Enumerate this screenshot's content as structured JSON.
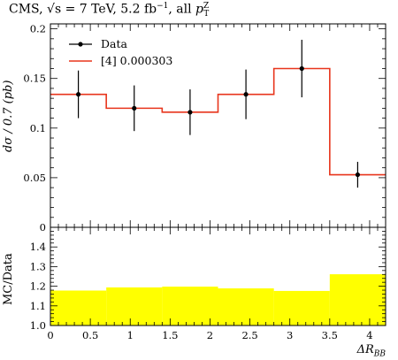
{
  "title": {
    "prefix": "CMS, ",
    "sqrt_s": "√s",
    "energy": " = 7 TeV, 5.2 fb",
    "lumi_exp": "−1",
    "suffix": ", all ",
    "pt": "p",
    "pt_sup": "Z",
    "pt_sub": "T"
  },
  "axes": {
    "main_ylabel": "dσ / 0.7 (pb)",
    "ratio_ylabel": "MC/Data",
    "xlabel": "ΔR",
    "xlabel_sub": "BB"
  },
  "chart_data": [
    {
      "type": "line",
      "panel": "main",
      "x_edges": [
        0,
        0.7,
        1.4,
        2.1,
        2.8,
        3.5,
        4.2
      ],
      "xlim": [
        0,
        4.2
      ],
      "ylim": [
        0,
        0.205
      ],
      "yticks": [
        0,
        0.05,
        0.1,
        0.15,
        0.2
      ],
      "ytick_labels": [
        "0",
        "0.05",
        "0.1",
        "0.15",
        "0.2"
      ],
      "legend_position": "top-left",
      "series": [
        {
          "name": "Data",
          "style": "points-with-errorbars",
          "color": "#000000",
          "x": [
            0.35,
            1.05,
            1.75,
            2.45,
            3.15,
            3.85
          ],
          "values": [
            0.134,
            0.12,
            0.116,
            0.134,
            0.16,
            0.053
          ],
          "errors": [
            0.024,
            0.023,
            0.023,
            0.025,
            0.029,
            0.013
          ]
        },
        {
          "name": "[4] 0.000303",
          "style": "step",
          "color": "#e8351c",
          "values": [
            0.134,
            0.12,
            0.116,
            0.134,
            0.16,
            0.053
          ]
        }
      ]
    },
    {
      "type": "area",
      "panel": "ratio",
      "x_edges": [
        0,
        0.7,
        1.4,
        2.1,
        2.8,
        3.5,
        4.2
      ],
      "xlim": [
        0,
        4.2
      ],
      "ylim": [
        1.0,
        1.5
      ],
      "yticks": [
        1.0,
        1.1,
        1.2,
        1.3,
        1.4
      ],
      "ytick_labels": [
        "1.0",
        "1.1",
        "1.2",
        "1.3",
        "1.4"
      ],
      "xticks": [
        0,
        0.5,
        1,
        1.5,
        2,
        2.5,
        3,
        3.5,
        4
      ],
      "xtick_labels": [
        "0",
        "0.5",
        "1",
        "1.5",
        "2",
        "2.5",
        "3",
        "3.5",
        "4"
      ],
      "series": [
        {
          "style": "filled-step",
          "color": "#ffff00",
          "values": [
            1.178,
            1.194,
            1.198,
            1.189,
            1.176,
            1.261
          ]
        }
      ]
    }
  ]
}
